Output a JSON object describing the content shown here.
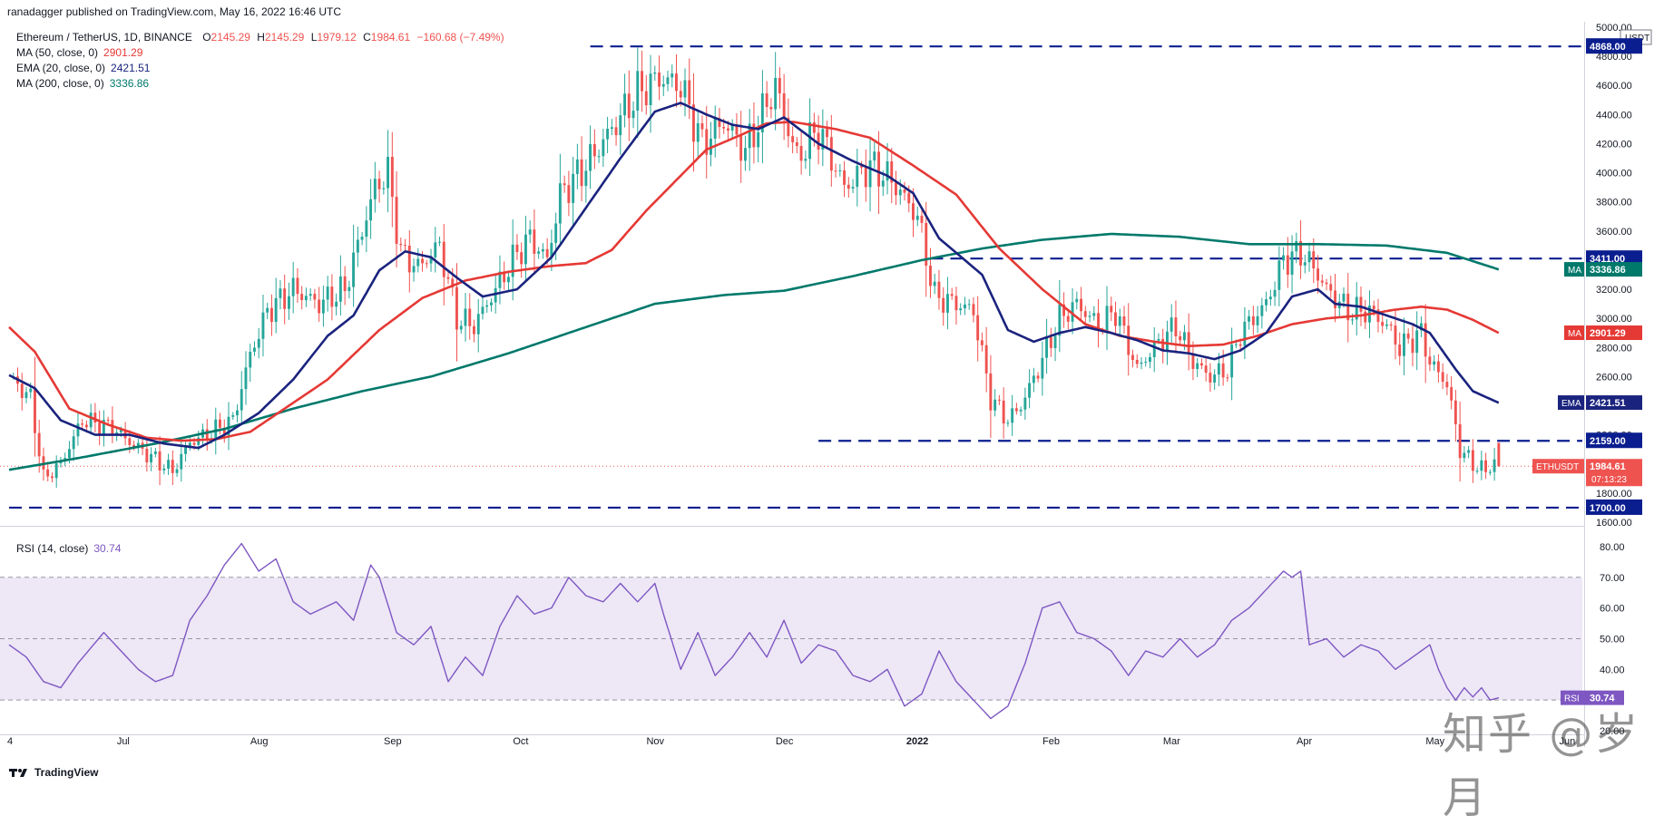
{
  "header": {
    "published": "ranadagger published on TradingView.com, May 16, 2022 16:46 UTC"
  },
  "legend": {
    "symbol": "Ethereum / TetherUS, 1D, BINANCE",
    "ohlc": [
      {
        "k": "O",
        "v": "2145.29"
      },
      {
        "k": "H",
        "v": "2145.29"
      },
      {
        "k": "L",
        "v": "1979.12"
      },
      {
        "k": "C",
        "v": "1984.61"
      }
    ],
    "change": "−160.68 (−7.49%)",
    "indicators": [
      {
        "label": "MA (50, close, 0)",
        "value": "2901.29",
        "color": "#e53935"
      },
      {
        "label": "EMA (20, close, 0)",
        "value": "2421.51",
        "color": "#1a237e"
      },
      {
        "label": "MA (200, close, 0)",
        "value": "3336.86",
        "color": "#00796b"
      }
    ]
  },
  "rsi_legend": {
    "label": "RSI (14, close)",
    "value": "30.74"
  },
  "footer": {
    "brand": "TradingView"
  },
  "watermark": "知乎 @岁月",
  "colors": {
    "up": "#26a69a",
    "down": "#ef5350",
    "ma50": "#e53935",
    "ema20": "#1a237e",
    "ma200": "#00796b",
    "rsi": "#7e57c2",
    "rsiband": "#ede7f6",
    "level": "#0b1e8f"
  },
  "chart_data": [
    {
      "type": "candlestick",
      "title": "Ethereum / TetherUS, 1D, BINANCE",
      "currency": "USDT",
      "ylim": [
        1600,
        5000
      ],
      "y_ticks": [
        1600,
        1800,
        2000,
        2200,
        2400,
        2600,
        2800,
        3000,
        3200,
        3400,
        3600,
        3800,
        4000,
        4200,
        4400,
        4600,
        4800,
        5000
      ],
      "y_tick_labels": [
        "1600.00",
        "1800.00",
        "2000.00",
        "2200.00",
        "2400.00",
        "2600.00",
        "2800.00",
        "3000.00",
        "3200.00",
        "3400.00",
        "3600.00",
        "3800.00",
        "4000.00",
        "4200.00",
        "4400.00",
        "4600.00",
        "4800.00",
        "5000.00"
      ],
      "x_ticks": [
        {
          "day": 0,
          "label": "4"
        },
        {
          "day": 27,
          "label": "Jul"
        },
        {
          "day": 58,
          "label": "Aug"
        },
        {
          "day": 89,
          "label": "Sep"
        },
        {
          "day": 119,
          "label": "Oct"
        },
        {
          "day": 150,
          "label": "Nov"
        },
        {
          "day": 180,
          "label": "Dec"
        },
        {
          "day": 211,
          "label": "2022"
        },
        {
          "day": 242,
          "label": "Feb"
        },
        {
          "day": 270,
          "label": "Mar"
        },
        {
          "day": 301,
          "label": "Apr"
        },
        {
          "day": 331,
          "label": "May"
        },
        {
          "day": 362,
          "label": "Jun"
        }
      ],
      "last_day": 346,
      "right_day": 365,
      "close_path": [
        [
          0,
          2600
        ],
        [
          5,
          2450
        ],
        [
          8,
          1900
        ],
        [
          12,
          2000
        ],
        [
          17,
          2300
        ],
        [
          24,
          2250
        ],
        [
          28,
          2150
        ],
        [
          33,
          2050
        ],
        [
          38,
          1950
        ],
        [
          42,
          2150
        ],
        [
          46,
          2200
        ],
        [
          52,
          2300
        ],
        [
          56,
          2750
        ],
        [
          60,
          3050
        ],
        [
          66,
          3200
        ],
        [
          72,
          3100
        ],
        [
          78,
          3200
        ],
        [
          85,
          3900
        ],
        [
          88,
          4000
        ],
        [
          91,
          3450
        ],
        [
          95,
          3350
        ],
        [
          100,
          3500
        ],
        [
          104,
          3000
        ],
        [
          108,
          2950
        ],
        [
          112,
          3150
        ],
        [
          118,
          3450
        ],
        [
          121,
          3550
        ],
        [
          125,
          3400
        ],
        [
          128,
          3850
        ],
        [
          134,
          4050
        ],
        [
          140,
          4300
        ],
        [
          146,
          4550
        ],
        [
          151,
          4650
        ],
        [
          156,
          4600
        ],
        [
          161,
          4200
        ],
        [
          166,
          4350
        ],
        [
          171,
          4150
        ],
        [
          178,
          4600
        ],
        [
          183,
          4100
        ],
        [
          188,
          4300
        ],
        [
          194,
          3900
        ],
        [
          200,
          4050
        ],
        [
          205,
          3950
        ],
        [
          211,
          3700
        ],
        [
          215,
          3150
        ],
        [
          220,
          3100
        ],
        [
          224,
          3050
        ],
        [
          228,
          2450
        ],
        [
          232,
          2300
        ],
        [
          235,
          2400
        ],
        [
          239,
          2650
        ],
        [
          244,
          3000
        ],
        [
          248,
          3100
        ],
        [
          253,
          2950
        ],
        [
          257,
          3050
        ],
        [
          262,
          2650
        ],
        [
          266,
          2800
        ],
        [
          271,
          2950
        ],
        [
          275,
          2700
        ],
        [
          279,
          2600
        ],
        [
          283,
          2650
        ],
        [
          286,
          2900
        ],
        [
          292,
          3100
        ],
        [
          296,
          3400
        ],
        [
          300,
          3450
        ],
        [
          303,
          3350
        ],
        [
          306,
          3200
        ],
        [
          311,
          3050
        ],
        [
          316,
          3050
        ],
        [
          320,
          2950
        ],
        [
          323,
          2800
        ],
        [
          328,
          2900
        ],
        [
          330,
          2700
        ],
        [
          334,
          2550
        ],
        [
          337,
          2100
        ],
        [
          340,
          2000
        ],
        [
          343,
          1950
        ],
        [
          346,
          2050
        ]
      ],
      "ohlc_last": {
        "open": 2145.29,
        "high": 2145.29,
        "low": 1979.12,
        "close": 1984.61
      },
      "ma50_path": [
        [
          0,
          2940
        ],
        [
          6,
          2770
        ],
        [
          14,
          2380
        ],
        [
          23,
          2270
        ],
        [
          32,
          2180
        ],
        [
          40,
          2160
        ],
        [
          48,
          2170
        ],
        [
          56,
          2220
        ],
        [
          64,
          2380
        ],
        [
          74,
          2580
        ],
        [
          86,
          2920
        ],
        [
          96,
          3140
        ],
        [
          106,
          3260
        ],
        [
          116,
          3320
        ],
        [
          126,
          3360
        ],
        [
          134,
          3380
        ],
        [
          140,
          3470
        ],
        [
          148,
          3740
        ],
        [
          156,
          3980
        ],
        [
          162,
          4160
        ],
        [
          170,
          4260
        ],
        [
          176,
          4340
        ],
        [
          182,
          4350
        ],
        [
          192,
          4300
        ],
        [
          200,
          4240
        ],
        [
          210,
          4050
        ],
        [
          220,
          3850
        ],
        [
          230,
          3480
        ],
        [
          240,
          3200
        ],
        [
          250,
          2960
        ],
        [
          258,
          2880
        ],
        [
          266,
          2840
        ],
        [
          274,
          2810
        ],
        [
          282,
          2820
        ],
        [
          290,
          2880
        ],
        [
          298,
          2960
        ],
        [
          306,
          3000
        ],
        [
          314,
          3020
        ],
        [
          322,
          3060
        ],
        [
          328,
          3080
        ],
        [
          334,
          3060
        ],
        [
          340,
          2990
        ],
        [
          346,
          2900
        ]
      ],
      "ema20_path": [
        [
          0,
          2610
        ],
        [
          6,
          2520
        ],
        [
          12,
          2300
        ],
        [
          20,
          2200
        ],
        [
          28,
          2200
        ],
        [
          36,
          2140
        ],
        [
          44,
          2110
        ],
        [
          50,
          2200
        ],
        [
          58,
          2350
        ],
        [
          66,
          2580
        ],
        [
          74,
          2880
        ],
        [
          80,
          3020
        ],
        [
          86,
          3330
        ],
        [
          92,
          3460
        ],
        [
          98,
          3420
        ],
        [
          104,
          3280
        ],
        [
          110,
          3150
        ],
        [
          118,
          3200
        ],
        [
          126,
          3420
        ],
        [
          134,
          3760
        ],
        [
          142,
          4100
        ],
        [
          150,
          4420
        ],
        [
          156,
          4480
        ],
        [
          162,
          4400
        ],
        [
          168,
          4330
        ],
        [
          174,
          4300
        ],
        [
          180,
          4380
        ],
        [
          188,
          4200
        ],
        [
          196,
          4080
        ],
        [
          204,
          3980
        ],
        [
          210,
          3860
        ],
        [
          216,
          3550
        ],
        [
          222,
          3400
        ],
        [
          226,
          3300
        ],
        [
          232,
          2920
        ],
        [
          238,
          2840
        ],
        [
          244,
          2900
        ],
        [
          250,
          2940
        ],
        [
          256,
          2900
        ],
        [
          262,
          2850
        ],
        [
          268,
          2780
        ],
        [
          274,
          2760
        ],
        [
          280,
          2720
        ],
        [
          286,
          2780
        ],
        [
          292,
          2900
        ],
        [
          298,
          3150
        ],
        [
          304,
          3200
        ],
        [
          308,
          3100
        ],
        [
          314,
          3080
        ],
        [
          320,
          3020
        ],
        [
          326,
          2960
        ],
        [
          330,
          2900
        ],
        [
          336,
          2650
        ],
        [
          340,
          2500
        ],
        [
          346,
          2420
        ]
      ],
      "ma200_path": [
        [
          0,
          1960
        ],
        [
          16,
          2040
        ],
        [
          34,
          2140
        ],
        [
          50,
          2240
        ],
        [
          66,
          2380
        ],
        [
          82,
          2500
        ],
        [
          98,
          2600
        ],
        [
          116,
          2760
        ],
        [
          134,
          2940
        ],
        [
          150,
          3100
        ],
        [
          166,
          3160
        ],
        [
          180,
          3190
        ],
        [
          196,
          3290
        ],
        [
          212,
          3400
        ],
        [
          226,
          3480
        ],
        [
          240,
          3540
        ],
        [
          256,
          3580
        ],
        [
          272,
          3560
        ],
        [
          288,
          3510
        ],
        [
          304,
          3510
        ],
        [
          320,
          3500
        ],
        [
          334,
          3450
        ],
        [
          346,
          3336
        ]
      ],
      "levels": [
        {
          "value": 4868,
          "label": "4868.00",
          "start_day": 135
        },
        {
          "value": 3411,
          "label": "3411.00",
          "start_day": 214
        },
        {
          "value": 2159,
          "label": "2159.00",
          "start_day": 188
        },
        {
          "value": 1700,
          "label": "1700.00",
          "start_day": 0
        }
      ],
      "price_tags": [
        {
          "label": "MA",
          "value": "3336.86",
          "price": 3336.86,
          "color": "#00796b"
        },
        {
          "label": "MA",
          "value": "2901.29",
          "price": 2901.29,
          "color": "#e53935"
        },
        {
          "label": "EMA",
          "value": "2421.51",
          "price": 2421.51,
          "color": "#1a237e"
        },
        {
          "label": "ETHUSDT",
          "value": "1984.61",
          "price": 1984.61,
          "color": "#ef5350",
          "countdown": "07:13:23"
        }
      ]
    },
    {
      "type": "line",
      "title": "RSI (14, close)",
      "ylim": [
        20,
        85
      ],
      "y_ticks": [
        20,
        30,
        40,
        50,
        60,
        70,
        80
      ],
      "y_tick_labels": [
        "20.00",
        "30.00",
        "40.00",
        "50.00",
        "60.00",
        "70.00",
        "80.00"
      ],
      "band": [
        30,
        70
      ],
      "mid": 50,
      "current": {
        "label": "RSI",
        "value": "30.74",
        "y": 30.74
      },
      "path": [
        [
          0,
          48
        ],
        [
          4,
          44
        ],
        [
          8,
          36
        ],
        [
          12,
          34
        ],
        [
          16,
          42
        ],
        [
          22,
          52
        ],
        [
          26,
          46
        ],
        [
          30,
          40
        ],
        [
          34,
          36
        ],
        [
          38,
          38
        ],
        [
          42,
          56
        ],
        [
          46,
          64
        ],
        [
          50,
          74
        ],
        [
          54,
          81
        ],
        [
          58,
          72
        ],
        [
          62,
          76
        ],
        [
          66,
          62
        ],
        [
          70,
          58
        ],
        [
          76,
          62
        ],
        [
          80,
          56
        ],
        [
          84,
          74
        ],
        [
          86,
          70
        ],
        [
          90,
          52
        ],
        [
          94,
          48
        ],
        [
          98,
          54
        ],
        [
          102,
          36
        ],
        [
          106,
          44
        ],
        [
          110,
          38
        ],
        [
          114,
          54
        ],
        [
          118,
          64
        ],
        [
          122,
          58
        ],
        [
          126,
          60
        ],
        [
          130,
          70
        ],
        [
          134,
          64
        ],
        [
          138,
          62
        ],
        [
          142,
          68
        ],
        [
          146,
          62
        ],
        [
          150,
          68
        ],
        [
          152,
          58
        ],
        [
          156,
          40
        ],
        [
          160,
          52
        ],
        [
          164,
          38
        ],
        [
          168,
          44
        ],
        [
          172,
          52
        ],
        [
          176,
          44
        ],
        [
          180,
          56
        ],
        [
          184,
          42
        ],
        [
          188,
          48
        ],
        [
          192,
          46
        ],
        [
          196,
          38
        ],
        [
          200,
          36
        ],
        [
          204,
          40
        ],
        [
          208,
          28
        ],
        [
          212,
          32
        ],
        [
          216,
          46
        ],
        [
          220,
          36
        ],
        [
          224,
          30
        ],
        [
          228,
          24
        ],
        [
          232,
          28
        ],
        [
          236,
          42
        ],
        [
          240,
          60
        ],
        [
          244,
          62
        ],
        [
          248,
          52
        ],
        [
          252,
          50
        ],
        [
          256,
          46
        ],
        [
          260,
          38
        ],
        [
          264,
          46
        ],
        [
          268,
          44
        ],
        [
          272,
          50
        ],
        [
          276,
          44
        ],
        [
          280,
          48
        ],
        [
          284,
          56
        ],
        [
          288,
          60
        ],
        [
          292,
          66
        ],
        [
          296,
          72
        ],
        [
          298,
          70
        ],
        [
          300,
          72
        ],
        [
          302,
          48
        ],
        [
          306,
          50
        ],
        [
          310,
          44
        ],
        [
          314,
          48
        ],
        [
          318,
          46
        ],
        [
          322,
          40
        ],
        [
          326,
          44
        ],
        [
          330,
          48
        ],
        [
          332,
          40
        ],
        [
          334,
          34
        ],
        [
          336,
          30
        ],
        [
          338,
          34
        ],
        [
          340,
          31
        ],
        [
          342,
          34
        ],
        [
          344,
          30
        ],
        [
          346,
          30.74
        ]
      ]
    }
  ]
}
